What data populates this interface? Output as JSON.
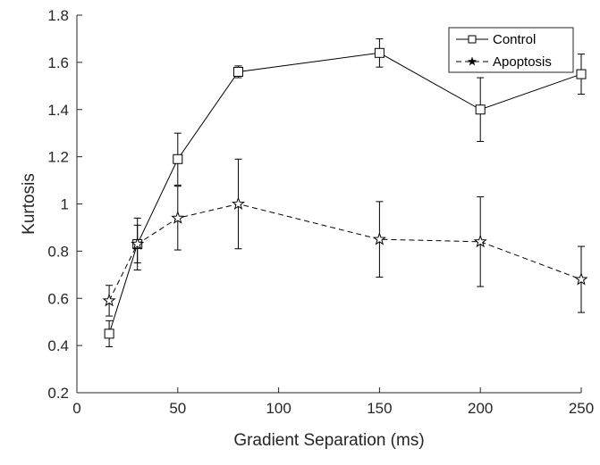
{
  "chart_data": {
    "type": "line",
    "title": "",
    "xlabel": "Gradient Separation (ms)",
    "ylabel": "Kurtosis",
    "xlim": [
      0,
      250
    ],
    "ylim": [
      0.2,
      1.8
    ],
    "x_ticks": [
      0,
      50,
      100,
      150,
      200,
      250
    ],
    "y_ticks": [
      0.2,
      0.4,
      0.6,
      0.8,
      1,
      1.2,
      1.4,
      1.6,
      1.8
    ],
    "x_tick_labels": [
      "0",
      "50",
      "100",
      "150",
      "200",
      "250"
    ],
    "y_tick_labels": [
      "0.2",
      "0.4",
      "0.6",
      "0.8",
      "1",
      "1.2",
      "1.4",
      "1.6",
      "1.8"
    ],
    "legend": {
      "position": "top-right"
    },
    "series": [
      {
        "name": "Control",
        "line_style": "solid",
        "marker": "square",
        "x": [
          16,
          30,
          50,
          80,
          150,
          200,
          250
        ],
        "y": [
          0.45,
          0.83,
          1.19,
          1.56,
          1.64,
          1.4,
          1.55
        ],
        "err": [
          0.055,
          0.08,
          0.11,
          0.025,
          0.06,
          0.135,
          0.085
        ]
      },
      {
        "name": "Apoptosis",
        "line_style": "dashed",
        "marker": "star",
        "x": [
          16,
          30,
          50,
          80,
          150,
          200,
          250
        ],
        "y": [
          0.59,
          0.83,
          0.94,
          1.0,
          0.85,
          0.84,
          0.68
        ],
        "err": [
          0.065,
          0.11,
          0.135,
          0.19,
          0.16,
          0.19,
          0.14
        ]
      }
    ]
  }
}
